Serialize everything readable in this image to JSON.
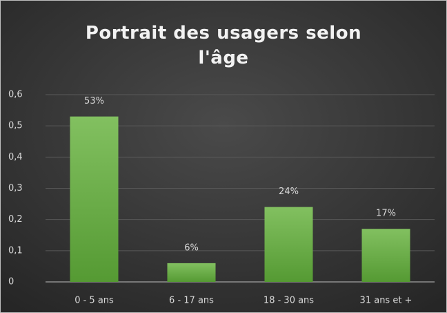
{
  "chart_data": {
    "type": "bar",
    "title": "Portrait des usagers selon l'âge",
    "categories": [
      "0 - 5 ans",
      "6 - 17 ans",
      "18 - 30 ans",
      "31 ans et +"
    ],
    "values": [
      0.53,
      0.06,
      0.24,
      0.17
    ],
    "value_labels": [
      "53%",
      "6%",
      "24%",
      "17%"
    ],
    "color": "#6aad45",
    "ylim": [
      0,
      0.6
    ],
    "yticks": [
      0,
      {
        "value": 0.1,
        "label": "0,1"
      },
      {
        "value": 0.2,
        "label": "0,2"
      },
      {
        "value": 0.3,
        "label": "0,3"
      },
      {
        "value": 0.4,
        "label": "0,4"
      },
      {
        "value": 0.5,
        "label": "0,5"
      },
      {
        "value": 0.6,
        "label": "0,6"
      }
    ],
    "grid": true
  }
}
